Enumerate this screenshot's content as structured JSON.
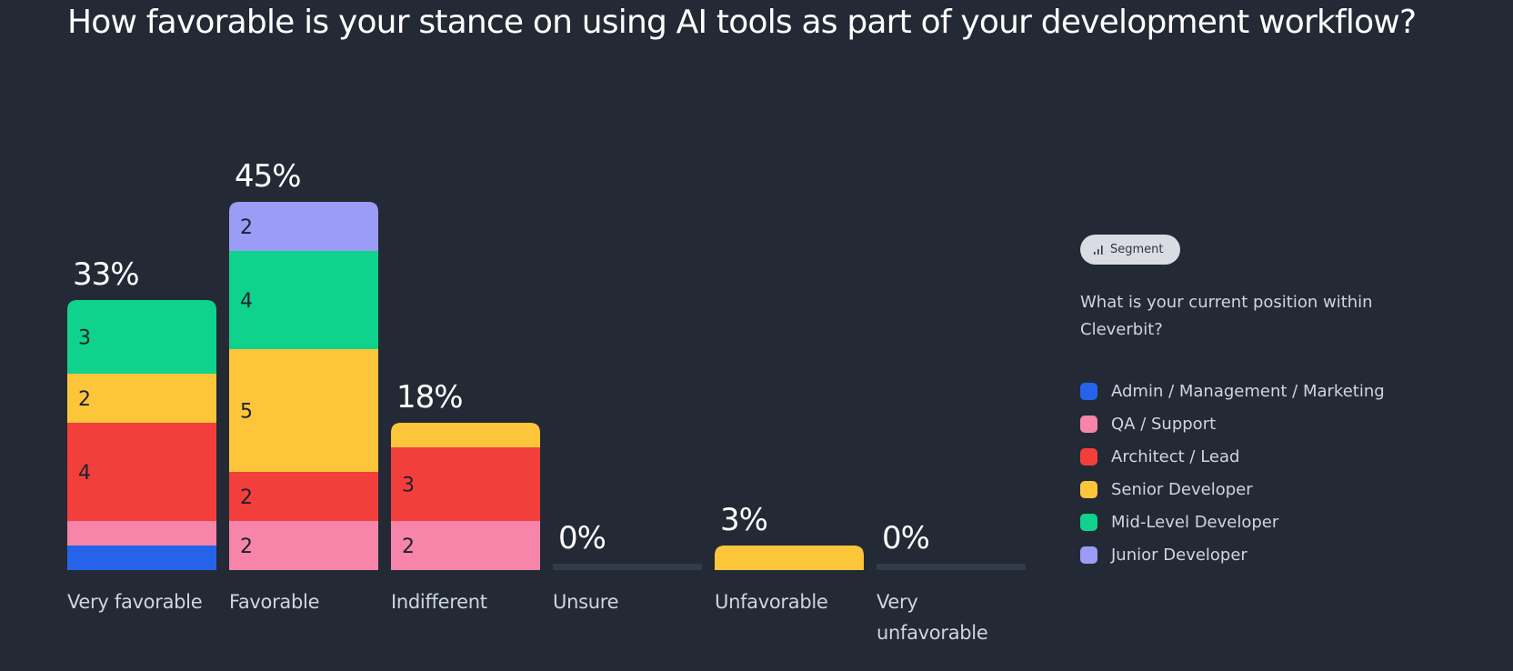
{
  "question_title": "How favorable is your stance on using AI tools as part of your development workflow?",
  "segment_button": {
    "label": "Segment",
    "icon": "bar-chart-icon"
  },
  "legend": {
    "question": "What is your current position within Cleverbit?",
    "items": [
      {
        "label": "Admin / Management / Marketing",
        "color": "#2563eb"
      },
      {
        "label": "QA / Support",
        "color": "#f784a9"
      },
      {
        "label": "Architect / Lead",
        "color": "#f33f3c"
      },
      {
        "label": "Senior Developer",
        "color": "#fdc53a"
      },
      {
        "label": "Mid-Level Developer",
        "color": "#0fd28c"
      },
      {
        "label": "Junior Developer",
        "color": "#9b9cf5"
      }
    ]
  },
  "chart_data": {
    "type": "bar",
    "stacked": true,
    "categories": [
      "Very favorable",
      "Favorable",
      "Indifferent",
      "Unsure",
      "Unfavorable",
      "Very unfavorable"
    ],
    "totals_percent": [
      "33%",
      "45%",
      "18%",
      "0%",
      "3%",
      "0%"
    ],
    "series": [
      {
        "name": "Admin / Management / Marketing",
        "color": "#2563eb",
        "values": [
          1,
          0,
          0,
          0,
          0,
          0
        ],
        "labels": [
          "",
          "",
          "",
          "",
          "",
          ""
        ]
      },
      {
        "name": "QA / Support",
        "color": "#f784a9",
        "values": [
          1,
          2,
          2,
          0,
          0,
          0
        ],
        "labels": [
          "",
          "2",
          "2",
          "",
          "",
          ""
        ]
      },
      {
        "name": "Architect / Lead",
        "color": "#f33f3c",
        "values": [
          4,
          2,
          3,
          0,
          0,
          0
        ],
        "labels": [
          "4",
          "2",
          "3",
          "",
          "",
          ""
        ]
      },
      {
        "name": "Senior Developer",
        "color": "#fdc53a",
        "values": [
          2,
          5,
          1,
          0,
          1,
          0
        ],
        "labels": [
          "2",
          "5",
          "",
          "",
          "",
          ""
        ]
      },
      {
        "name": "Mid-Level Developer",
        "color": "#0fd28c",
        "values": [
          3,
          4,
          0,
          0,
          0,
          0
        ],
        "labels": [
          "3",
          "4",
          "",
          "",
          "",
          ""
        ]
      },
      {
        "name": "Junior Developer",
        "color": "#9b9cf5",
        "values": [
          0,
          2,
          0,
          0,
          0,
          0
        ],
        "labels": [
          "",
          "2",
          "",
          "",
          "",
          ""
        ]
      }
    ],
    "colors": {
      "empty_track": "#343b48",
      "category_label": "#cfd5de",
      "segment_label": "#1c2230",
      "percent_label": "#ffffff"
    }
  }
}
